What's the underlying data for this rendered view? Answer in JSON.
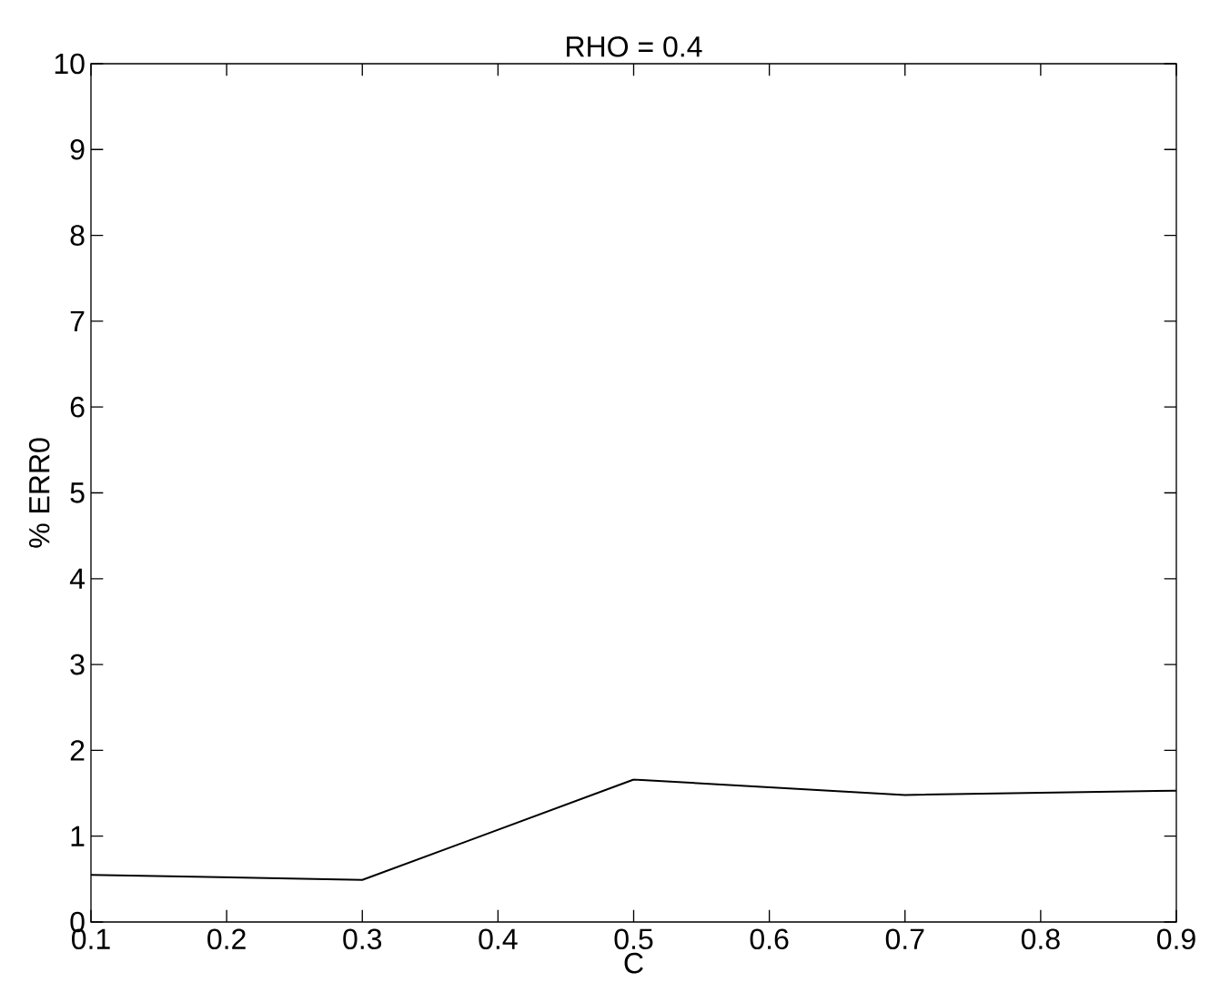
{
  "chart_data": {
    "type": "line",
    "title": "RHO = 0.4",
    "xlabel": "C",
    "ylabel": "% ERR0",
    "x": [
      0.1,
      0.3,
      0.5,
      0.7,
      0.9
    ],
    "series": [
      {
        "color": "#000000",
        "values": [
          0.55,
          0.49,
          1.66,
          1.48,
          1.53
        ]
      }
    ],
    "xlim": [
      0.1,
      0.9
    ],
    "xticks": [
      0.1,
      0.2,
      0.3,
      0.4,
      0.5,
      0.6,
      0.7,
      0.8,
      0.9
    ],
    "ylim": [
      0,
      10
    ],
    "yticks": [
      0,
      1,
      2,
      3,
      4,
      5,
      6,
      7,
      8,
      9,
      10
    ],
    "grid": false,
    "marker": "none",
    "line_style": "solid"
  }
}
